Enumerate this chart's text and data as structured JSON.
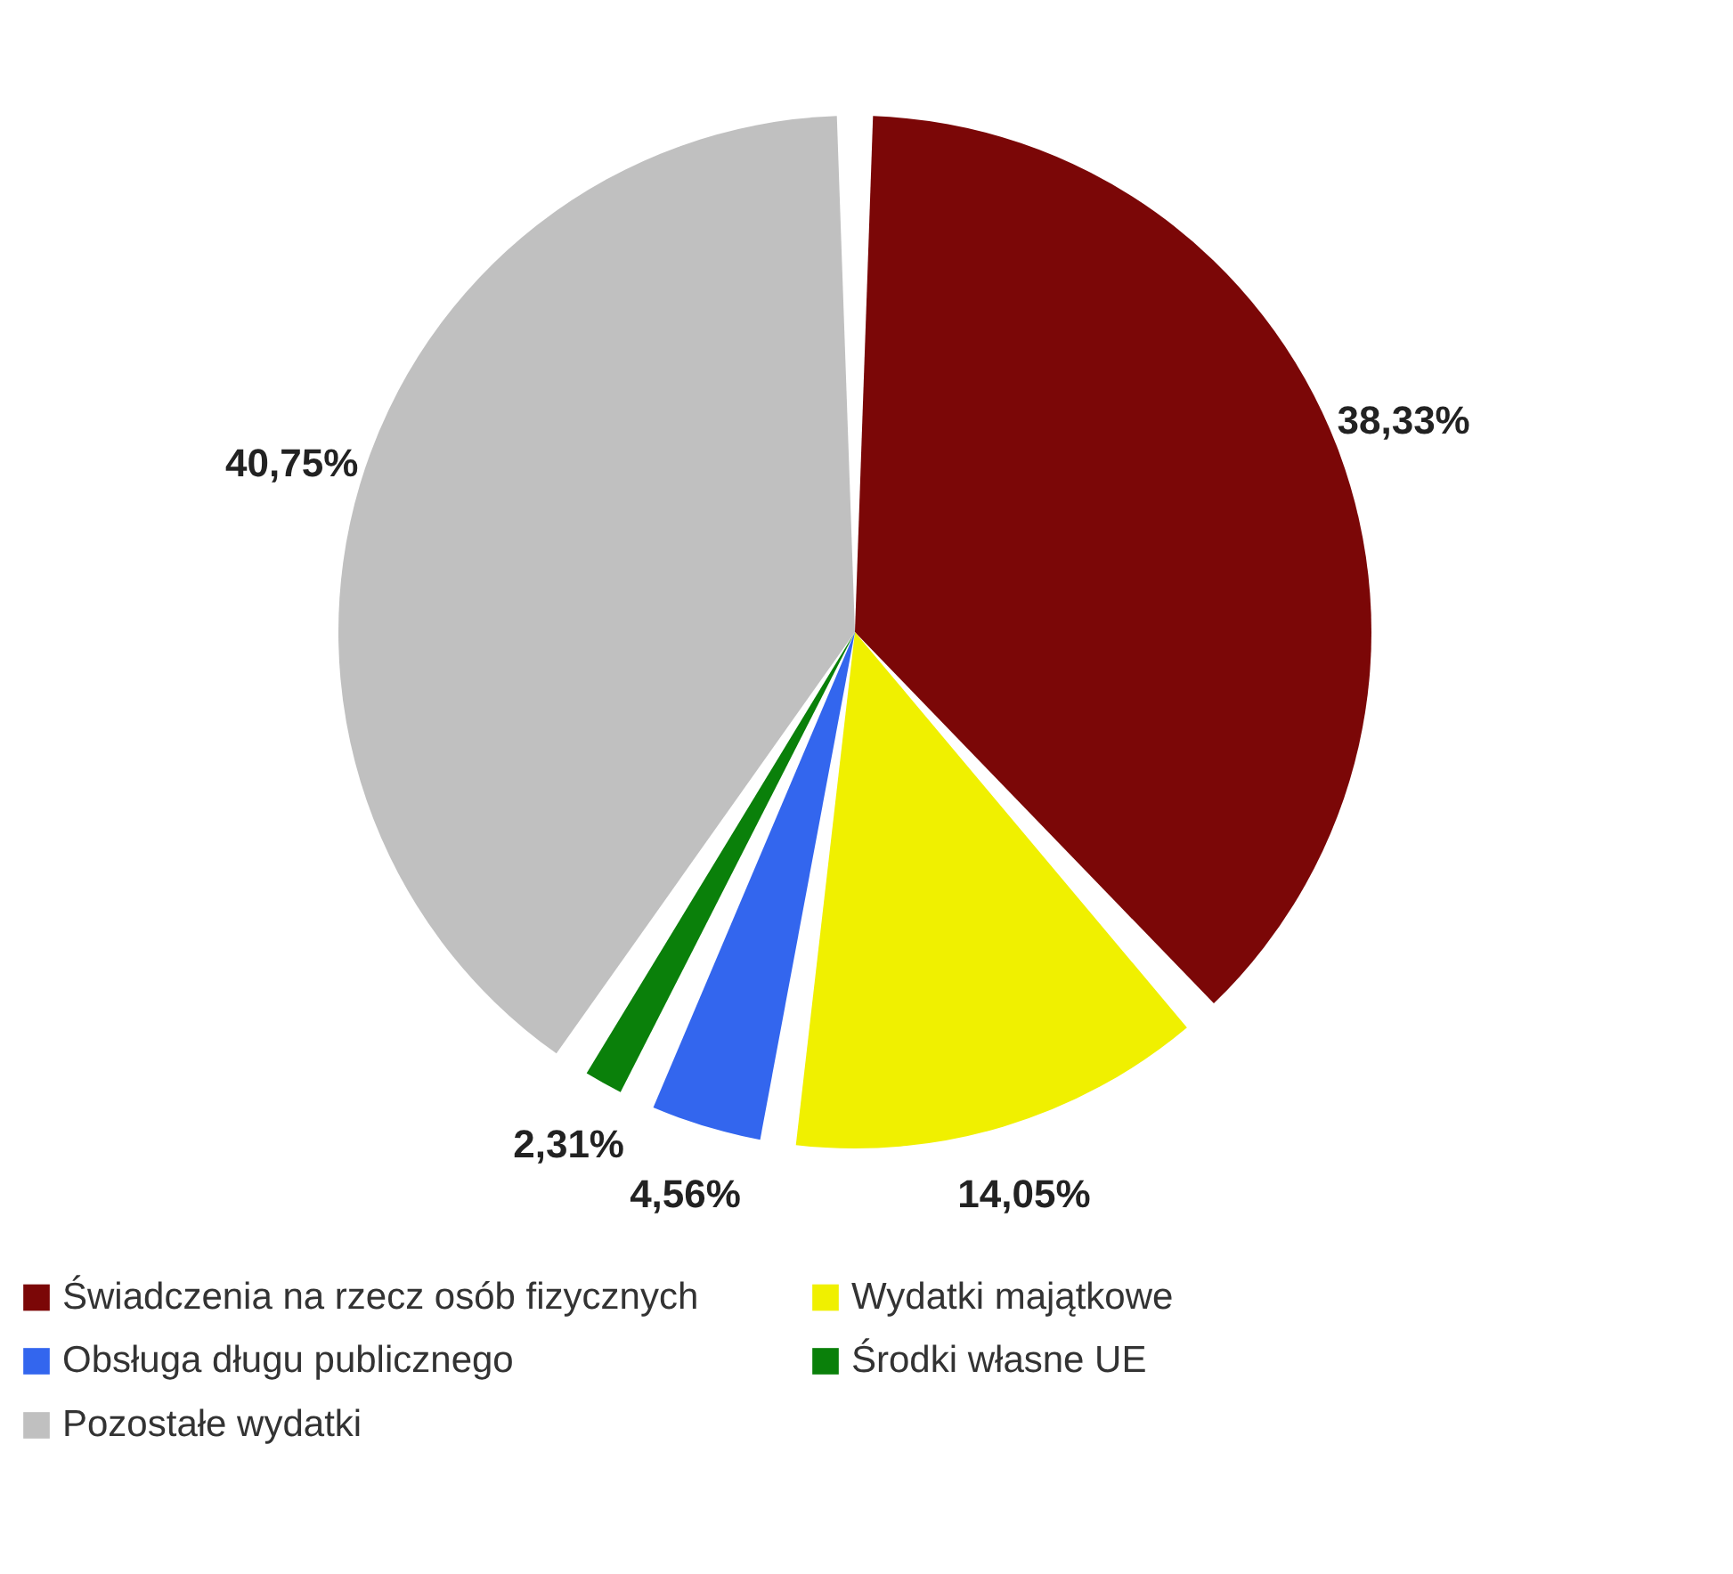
{
  "chart_data": {
    "type": "pie",
    "categories": [
      "Świadczenia na rzecz osób fizycznych",
      "Wydatki majątkowe",
      "Obsługa długu publicznego",
      "Środki własne UE",
      "Pozostałe wydatki"
    ],
    "values": [
      38.33,
      14.05,
      4.56,
      2.31,
      40.75
    ],
    "colors": [
      "#7b0707",
      "#f0f000",
      "#3366ee",
      "#0a800a",
      "#c0c0c0"
    ],
    "value_labels": [
      "38,33%",
      "14,05%",
      "4,56%",
      "2,31%",
      "40,75%"
    ],
    "legend": "bottom"
  }
}
